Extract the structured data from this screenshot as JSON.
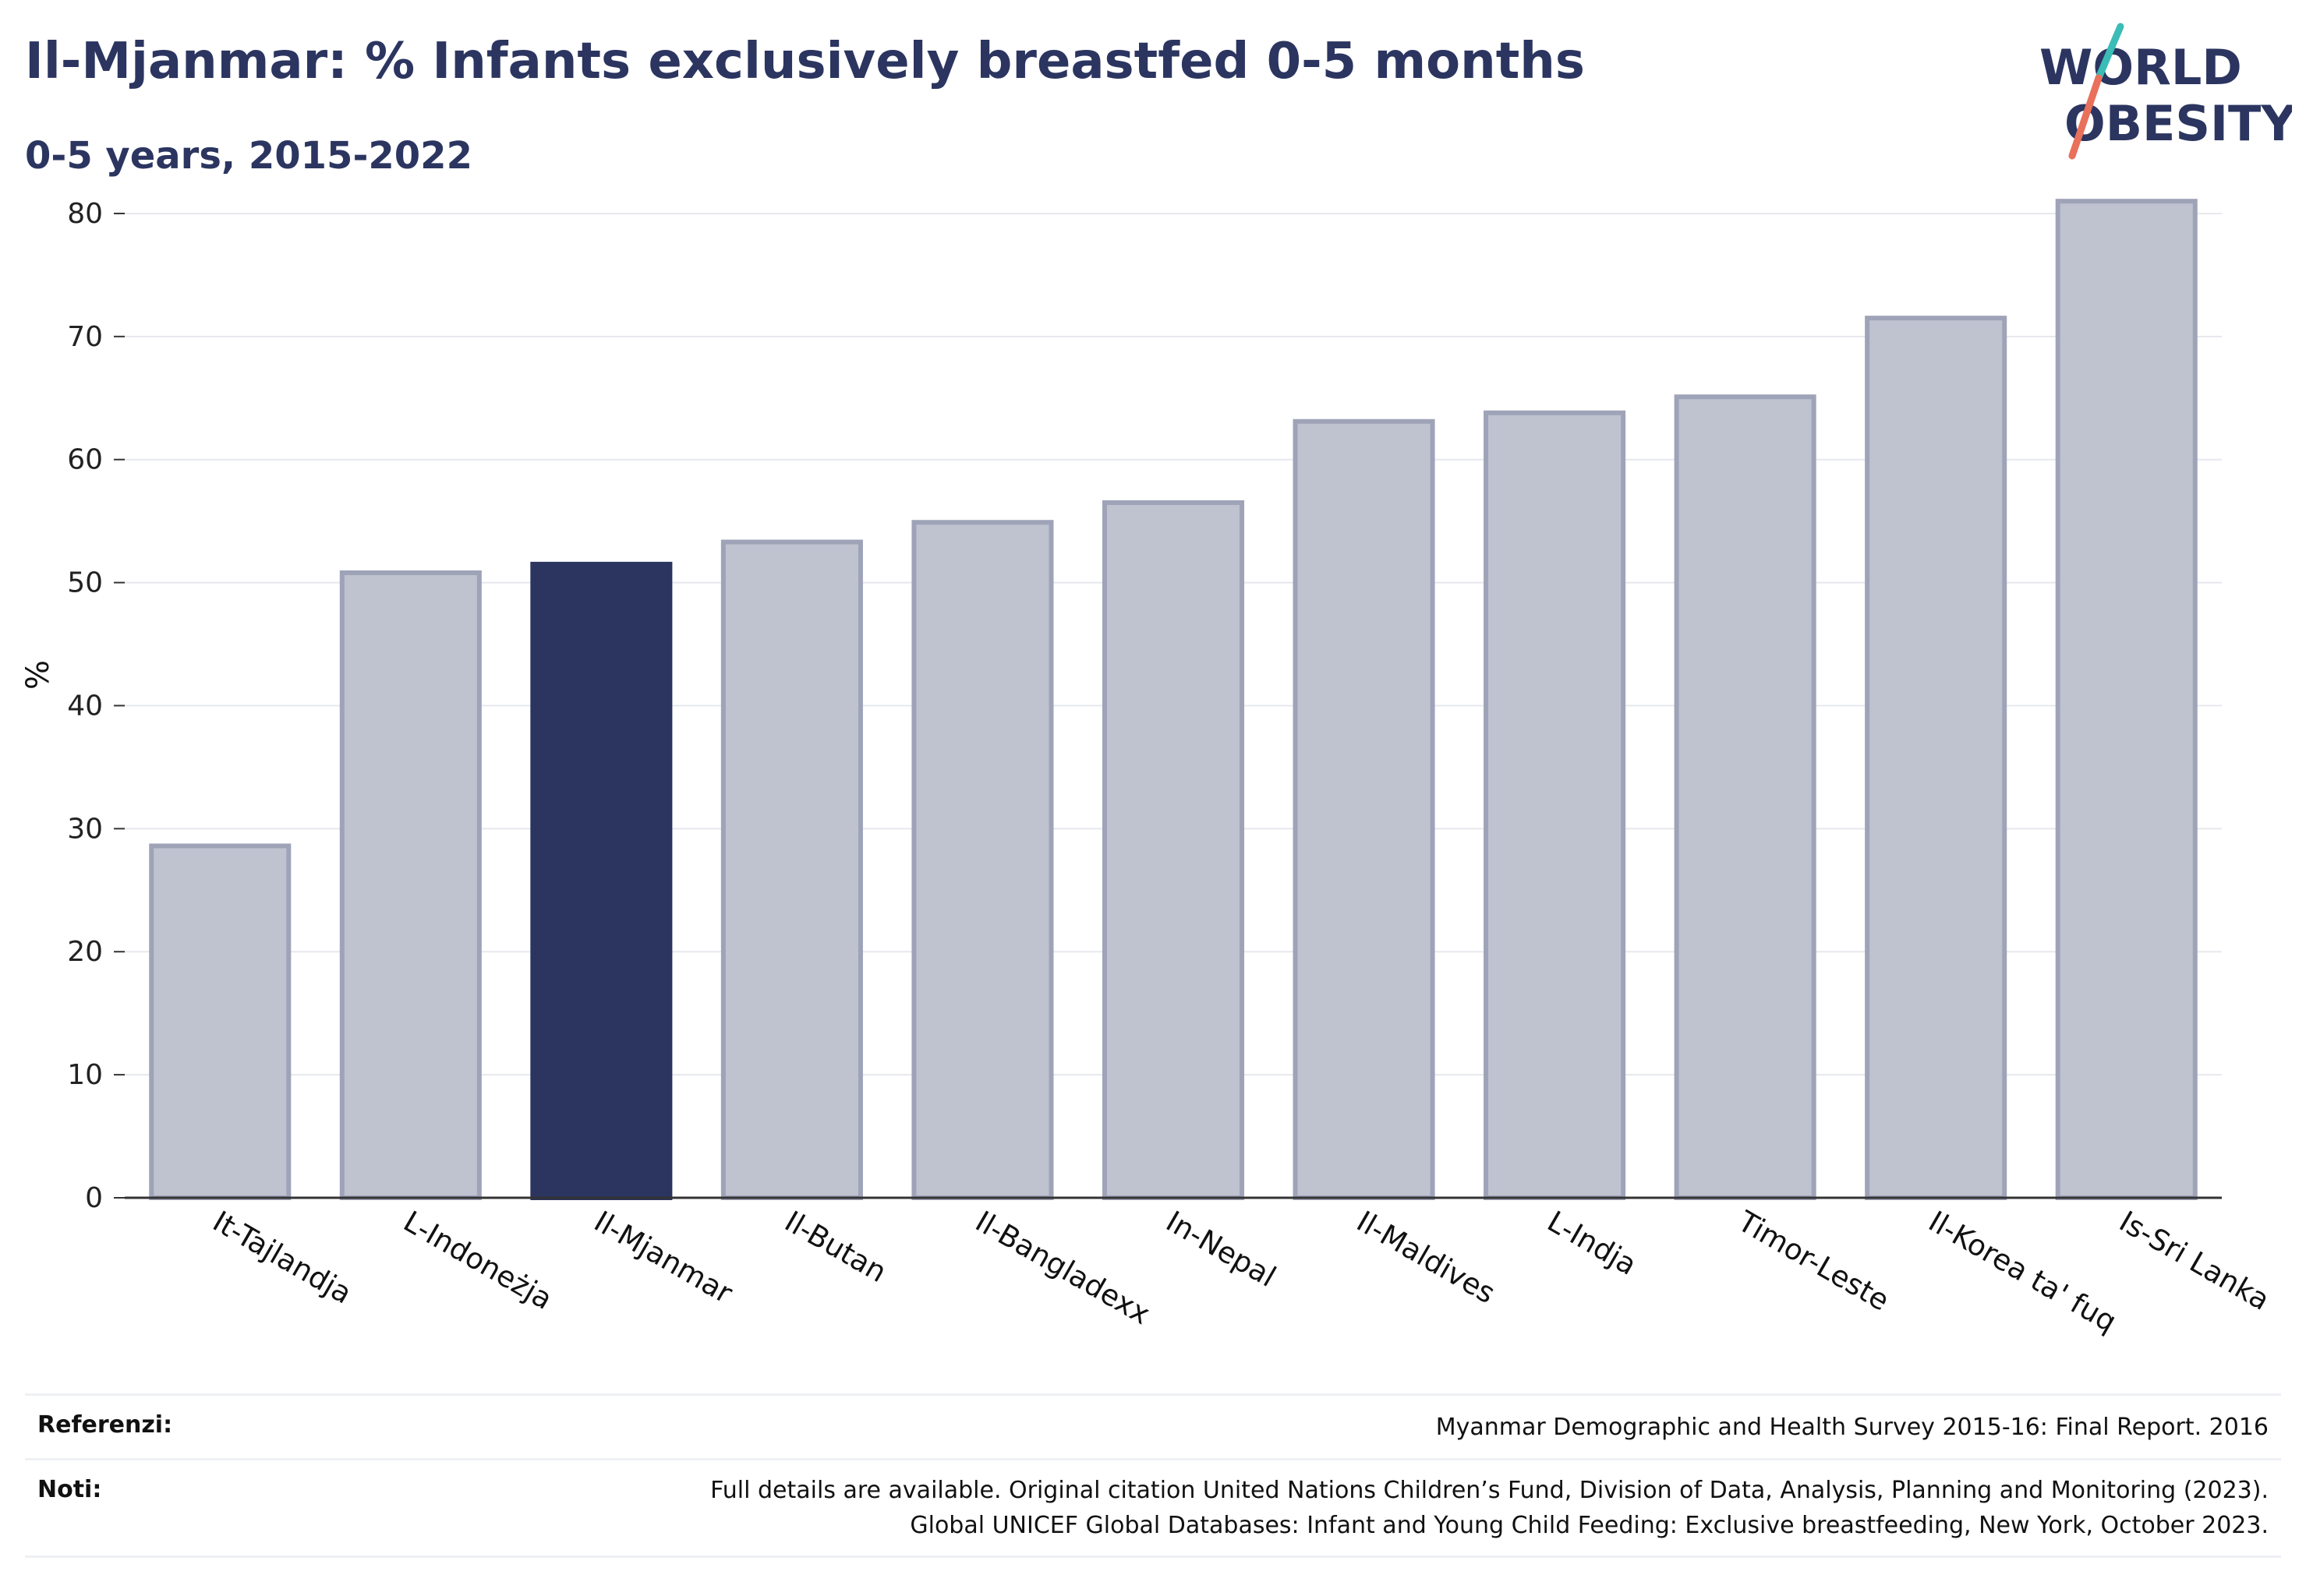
{
  "title": "Il-Mjanmar: % Infants exclusively breastfed 0-5 months",
  "subtitle": "0-5 years, 2015-2022",
  "logo": {
    "line1": "WORLD",
    "line2": "OBESITY"
  },
  "colors": {
    "title": "#2b3560",
    "highlight": "#2b3560",
    "bar": "#bfc2cf",
    "bar_stroke": "#9fa3b8",
    "slash_teal": "#3bbcb7",
    "slash_coral": "#e9705a"
  },
  "chart_data": {
    "type": "bar",
    "categories": [
      "It-Tajlandja",
      "L-Indoneżja",
      "Il-Mjanmar",
      "Il-Butan",
      "Il-Bangladexx",
      "In-Nepal",
      "Il-Maldives",
      "L-Indja",
      "Timor-Leste",
      "Il-Korea ta' fuq",
      "Is-Sri Lanka"
    ],
    "values": [
      28.6,
      50.8,
      51.5,
      53.3,
      54.9,
      56.5,
      63.1,
      63.8,
      65.1,
      71.5,
      81.0
    ],
    "highlight": "Il-Mjanmar",
    "ylabel": "%",
    "xlabel": "",
    "ylim": [
      0,
      85
    ],
    "yticks": [
      0,
      10,
      20,
      30,
      40,
      50,
      60,
      70,
      80
    ],
    "grid": true,
    "legend": "none"
  },
  "footer": {
    "references_label": "Referenzi:",
    "references_text": "Myanmar Demographic and Health Survey 2015-16: Final Report. 2016",
    "notes_label": "Noti:",
    "notes_line1": "Full details are available. Original citation United Nations Children’s Fund, Division of Data, Analysis, Planning and Monitoring (2023).",
    "notes_line2": "Global UNICEF Global Databases: Infant and Young Child Feeding: Exclusive breastfeeding, New York, October 2023."
  }
}
